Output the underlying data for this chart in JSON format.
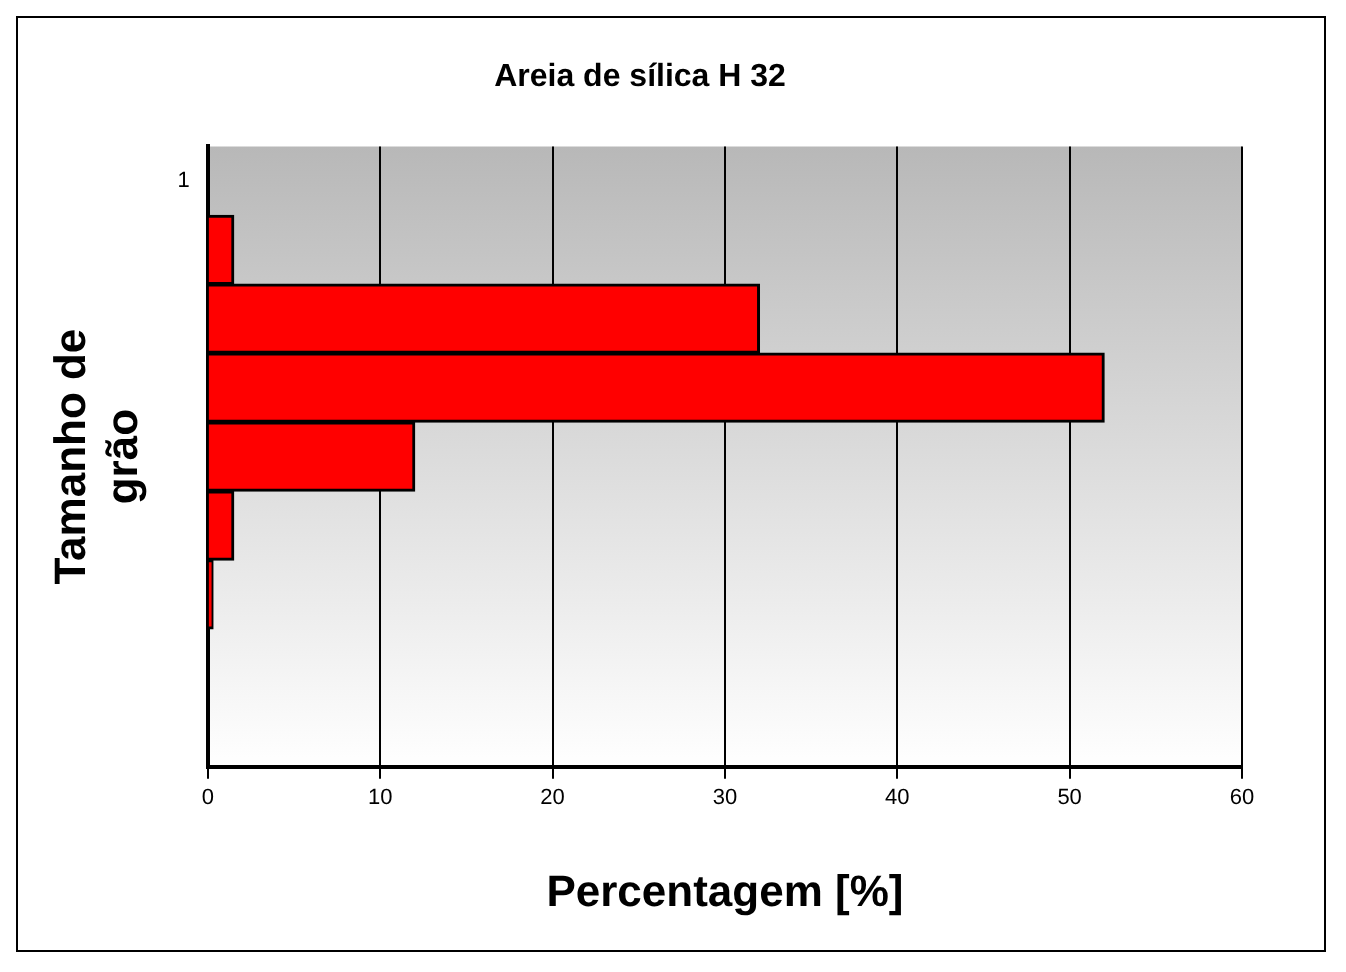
{
  "chart_data": {
    "type": "bar",
    "orientation": "horizontal",
    "title": "Areia de sílica H 32",
    "xlabel": "Percentagem [%]",
    "ylabel": "Tamanho de grão",
    "categories": [
      "1",
      null,
      null,
      null,
      null,
      null,
      null,
      null,
      null
    ],
    "values": [
      0,
      1.5,
      32,
      52,
      12,
      1.5,
      0.3,
      0,
      0
    ],
    "color": "#ff0000",
    "xlim": [
      0,
      60
    ],
    "xticks": [
      0,
      10,
      20,
      30,
      40,
      50,
      60
    ],
    "grid": "x",
    "legend": false
  }
}
